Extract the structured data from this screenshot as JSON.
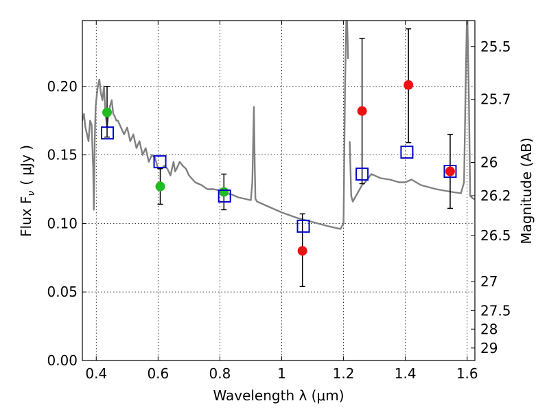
{
  "chart_data": {
    "type": "scatter",
    "xlabel": "Wavelength  λ (μm)",
    "ylabel": "Flux  F",
    "ylabel_sub": "ν",
    "ylabel_unit": "( μJy )",
    "y2label": "Magnitude (AB)",
    "xlim": [
      0.355,
      1.625
    ],
    "ylim": [
      0.0,
      0.248
    ],
    "grid": true,
    "x_ticks": [
      {
        "value": 0.4,
        "label": "0.4"
      },
      {
        "value": 0.6,
        "label": "0.6"
      },
      {
        "value": 0.8,
        "label": "0.8"
      },
      {
        "value": 1.0,
        "label": "1"
      },
      {
        "value": 1.2,
        "label": "1.2"
      },
      {
        "value": 1.4,
        "label": "1.4"
      },
      {
        "value": 1.6,
        "label": "1.6"
      }
    ],
    "y_ticks": [
      {
        "value": 0.0,
        "label": "0.00"
      },
      {
        "value": 0.05,
        "label": "0.05"
      },
      {
        "value": 0.1,
        "label": "0.10"
      },
      {
        "value": 0.15,
        "label": "0.15"
      },
      {
        "value": 0.2,
        "label": "0.20"
      }
    ],
    "y2_ticks": [
      {
        "mag": 25.5,
        "label": "25.5"
      },
      {
        "mag": 25.7,
        "label": "25.7"
      },
      {
        "mag": 26.0,
        "label": "26"
      },
      {
        "mag": 26.2,
        "label": "26.2"
      },
      {
        "mag": 26.5,
        "label": "26.5"
      },
      {
        "mag": 27.0,
        "label": "27"
      },
      {
        "mag": 27.5,
        "label": "27.5"
      },
      {
        "mag": 28.0,
        "label": "28"
      },
      {
        "mag": 29.0,
        "label": "29"
      }
    ],
    "colors": {
      "model": "#808080",
      "green": "#22bb22",
      "red": "#ee1111",
      "blue": "#0000cc",
      "errorbar": "#000000"
    },
    "model_sed": {
      "x": [
        0.355,
        0.36,
        0.365,
        0.37,
        0.375,
        0.38,
        0.385,
        0.39,
        0.392,
        0.395,
        0.398,
        0.4,
        0.405,
        0.41,
        0.415,
        0.42,
        0.425,
        0.43,
        0.435,
        0.438,
        0.44,
        0.445,
        0.45,
        0.455,
        0.46,
        0.465,
        0.47,
        0.48,
        0.49,
        0.5,
        0.51,
        0.52,
        0.53,
        0.54,
        0.55,
        0.56,
        0.57,
        0.58,
        0.59,
        0.6,
        0.61,
        0.62,
        0.63,
        0.64,
        0.65,
        0.655,
        0.66,
        0.67,
        0.68,
        0.69,
        0.7,
        0.72,
        0.74,
        0.76,
        0.78,
        0.8,
        0.82,
        0.84,
        0.86,
        0.88,
        0.9,
        0.905,
        0.91,
        0.913,
        0.915,
        0.92,
        0.95,
        1.0,
        1.05,
        1.1,
        1.15,
        1.19,
        1.2,
        1.205,
        1.21,
        1.215,
        1.22,
        1.225,
        1.23,
        1.24,
        1.25,
        1.26,
        1.27,
        1.28,
        1.29,
        1.3,
        1.32,
        1.35,
        1.38,
        1.4,
        1.42,
        1.45,
        1.5,
        1.55,
        1.58,
        1.59,
        1.595,
        1.6,
        1.605,
        1.61,
        1.62,
        1.625
      ],
      "y": [
        0.175,
        0.18,
        0.17,
        0.165,
        0.16,
        0.175,
        0.172,
        0.14,
        0.11,
        0.16,
        0.185,
        0.19,
        0.2,
        0.205,
        0.195,
        0.19,
        0.2,
        0.18,
        0.17,
        0.176,
        0.18,
        0.186,
        0.19,
        0.18,
        0.178,
        0.175,
        0.175,
        0.17,
        0.165,
        0.17,
        0.16,
        0.165,
        0.155,
        0.16,
        0.15,
        0.155,
        0.145,
        0.15,
        0.148,
        0.14,
        0.14,
        0.142,
        0.14,
        0.135,
        0.145,
        0.138,
        0.14,
        0.145,
        0.142,
        0.14,
        0.135,
        0.13,
        0.128,
        0.125,
        0.125,
        0.124,
        0.122,
        0.121,
        0.119,
        0.118,
        0.117,
        0.13,
        0.185,
        0.14,
        0.118,
        0.116,
        0.113,
        0.108,
        0.104,
        0.101,
        0.098,
        0.096,
        0.1,
        0.2,
        0.26,
        0.22,
        0.16,
        0.12,
        0.116,
        0.12,
        0.124,
        0.128,
        0.13,
        0.133,
        0.136,
        0.135,
        0.133,
        0.132,
        0.13,
        0.13,
        0.132,
        0.128,
        0.125,
        0.123,
        0.122,
        0.13,
        0.2,
        0.26,
        0.2,
        0.12,
        0.118,
        0.118
      ],
      "break_before_index": 76
    },
    "series": [
      {
        "name": "green",
        "marker": "circle",
        "points": [
          {
            "x": 0.435,
            "y": 0.181
          },
          {
            "x": 0.607,
            "y": 0.127
          },
          {
            "x": 0.813,
            "y": 0.123
          }
        ]
      },
      {
        "name": "red",
        "marker": "circle",
        "points": [
          {
            "x": 1.067,
            "y": 0.08
          },
          {
            "x": 1.26,
            "y": 0.182
          },
          {
            "x": 1.41,
            "y": 0.201
          },
          {
            "x": 1.545,
            "y": 0.138
          }
        ]
      },
      {
        "name": "blue",
        "marker": "open-square",
        "points": [
          {
            "x": 0.436,
            "y": 0.166
          },
          {
            "x": 0.606,
            "y": 0.145
          },
          {
            "x": 0.815,
            "y": 0.12
          },
          {
            "x": 1.07,
            "y": 0.098
          },
          {
            "x": 1.26,
            "y": 0.136
          },
          {
            "x": 1.405,
            "y": 0.152
          },
          {
            "x": 1.545,
            "y": 0.138
          }
        ]
      }
    ],
    "errorbars": [
      {
        "x": 0.435,
        "y_low": 0.163,
        "y_high": 0.2
      },
      {
        "x": 0.607,
        "y_low": 0.114,
        "y_high": 0.14
      },
      {
        "x": 0.813,
        "y_low": 0.11,
        "y_high": 0.136
      },
      {
        "x": 1.067,
        "y_low": 0.054,
        "y_high": 0.107
      },
      {
        "x": 1.26,
        "y_low": 0.129,
        "y_high": 0.235
      },
      {
        "x": 1.41,
        "y_low": 0.159,
        "y_high": 0.242
      },
      {
        "x": 1.545,
        "y_low": 0.111,
        "y_high": 0.165
      }
    ]
  }
}
